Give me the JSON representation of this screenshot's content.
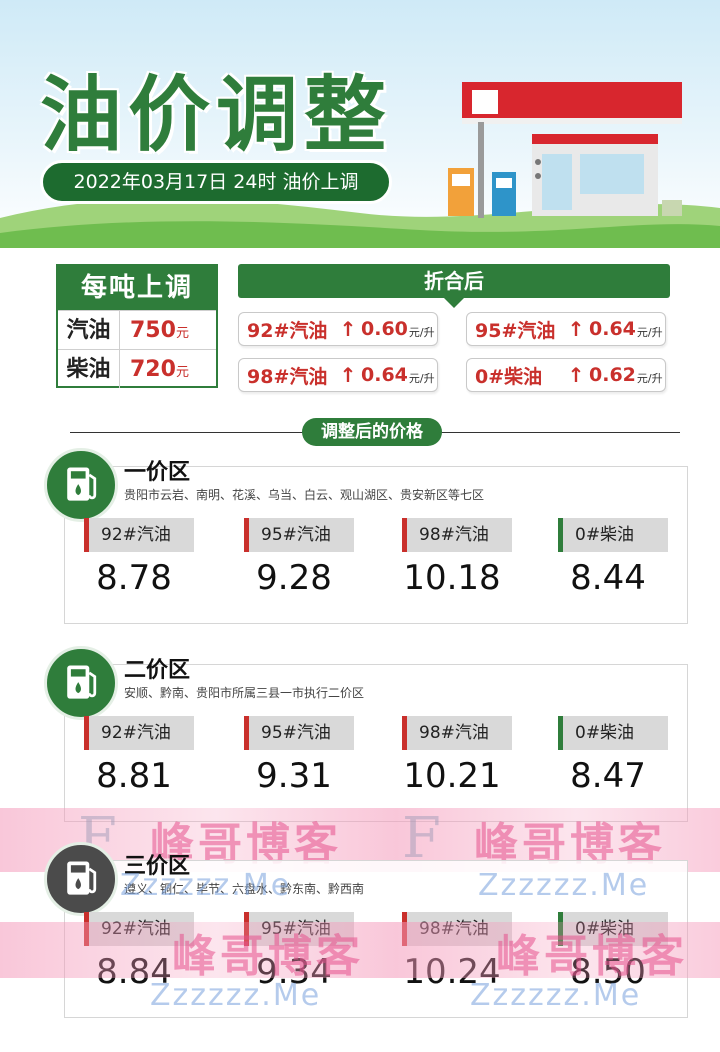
{
  "header": {
    "title": "油价调整",
    "date_line": "2022年03月17日 24时 油价上调"
  },
  "per_ton": {
    "title": "每吨上调",
    "rows": [
      {
        "name": "汽油",
        "value": "750",
        "unit": "元"
      },
      {
        "name": "柴油",
        "value": "720",
        "unit": "元"
      }
    ]
  },
  "converted": {
    "title": "折合后",
    "items": [
      {
        "name": "92#汽油",
        "value": "0.60",
        "unit": "元/升"
      },
      {
        "name": "95#汽油",
        "value": "0.64",
        "unit": "元/升"
      },
      {
        "name": "98#汽油",
        "value": "0.64",
        "unit": "元/升"
      },
      {
        "name": "0#柴油",
        "value": "0.62",
        "unit": "元/升"
      }
    ],
    "arrow": "↑"
  },
  "adjusted_label": "调整后的价格",
  "zones": [
    {
      "title": "一价区",
      "areas": "贵阳市云岩、南明、花溪、乌当、白云、观山湖区、贵安新区等七区",
      "fuels": [
        {
          "name": "92#汽油",
          "price": "8.78"
        },
        {
          "name": "95#汽油",
          "price": "9.28"
        },
        {
          "name": "98#汽油",
          "price": "10.18"
        },
        {
          "name": "0#柴油",
          "price": "8.44"
        }
      ]
    },
    {
      "title": "二价区",
      "areas": "安顺、黔南、贵阳市所属三县一市执行二价区",
      "fuels": [
        {
          "name": "92#汽油",
          "price": "8.81"
        },
        {
          "name": "95#汽油",
          "price": "9.31"
        },
        {
          "name": "98#汽油",
          "price": "10.21"
        },
        {
          "name": "0#柴油",
          "price": "8.47"
        }
      ]
    },
    {
      "title": "三价区",
      "areas": "遵义、铜仁、毕节、六盘水、黔东南、黔西南",
      "fuels": [
        {
          "name": "92#汽油",
          "price": "8.84"
        },
        {
          "name": "95#汽油",
          "price": "9.34"
        },
        {
          "name": "98#汽油",
          "price": "10.24"
        },
        {
          "name": "0#柴油",
          "price": "8.50"
        }
      ]
    }
  ],
  "watermark": {
    "text": "峰哥博客",
    "sub": "Zzzzzz.Me"
  },
  "colors": {
    "brand_green": "#2f7d3b",
    "price_red": "#c9302c"
  }
}
